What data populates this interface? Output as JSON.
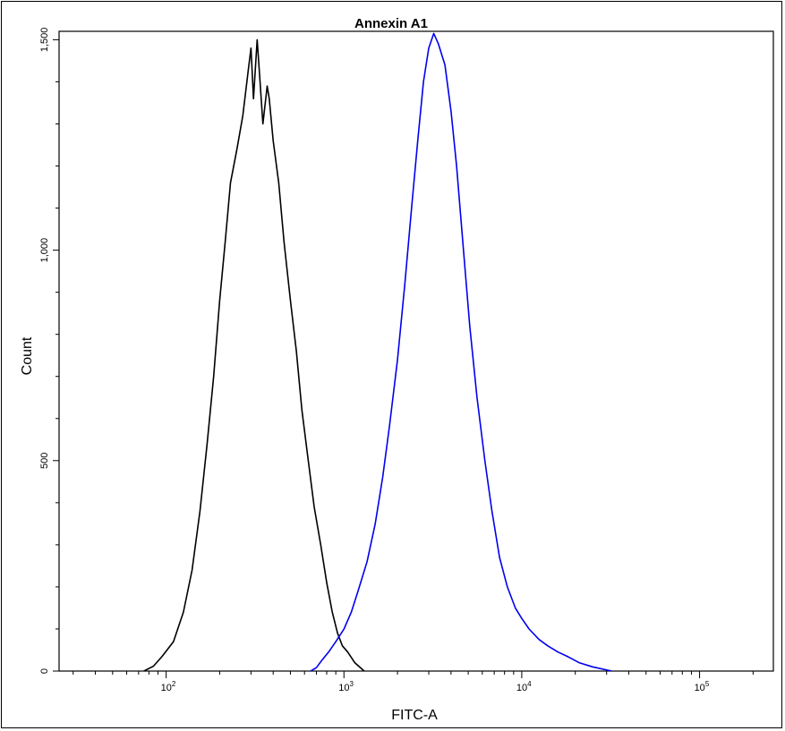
{
  "chart_data": {
    "type": "line",
    "title": "Annexin A1",
    "xlabel": "FITC-A",
    "ylabel": "Count",
    "x_scale": "log",
    "xlim": [
      25,
      260000
    ],
    "ylim": [
      0,
      1520
    ],
    "x_ticks": [
      {
        "value": 100,
        "base": "10",
        "exp": "2"
      },
      {
        "value": 1000,
        "base": "10",
        "exp": "3"
      },
      {
        "value": 10000,
        "base": "10",
        "exp": "4"
      },
      {
        "value": 100000,
        "base": "10",
        "exp": "5"
      }
    ],
    "y_ticks": [
      0,
      500,
      1000,
      1500
    ],
    "y_tick_labels": [
      "0",
      "500",
      "1,000",
      "1,500"
    ],
    "grid": false,
    "legend": "none",
    "series": [
      {
        "color": "#000000",
        "points": [
          [
            75,
            0
          ],
          [
            85,
            12
          ],
          [
            95,
            35
          ],
          [
            110,
            70
          ],
          [
            125,
            140
          ],
          [
            140,
            240
          ],
          [
            155,
            380
          ],
          [
            170,
            540
          ],
          [
            185,
            700
          ],
          [
            200,
            880
          ],
          [
            215,
            1020
          ],
          [
            230,
            1160
          ],
          [
            250,
            1240
          ],
          [
            270,
            1320
          ],
          [
            290,
            1430
          ],
          [
            300,
            1480
          ],
          [
            310,
            1360
          ],
          [
            325,
            1500
          ],
          [
            335,
            1420
          ],
          [
            350,
            1300
          ],
          [
            370,
            1390
          ],
          [
            380,
            1360
          ],
          [
            400,
            1260
          ],
          [
            430,
            1160
          ],
          [
            460,
            1020
          ],
          [
            500,
            880
          ],
          [
            540,
            760
          ],
          [
            580,
            620
          ],
          [
            630,
            500
          ],
          [
            680,
            390
          ],
          [
            740,
            300
          ],
          [
            800,
            210
          ],
          [
            860,
            140
          ],
          [
            920,
            90
          ],
          [
            980,
            60
          ],
          [
            1050,
            45
          ],
          [
            1150,
            20
          ],
          [
            1300,
            0
          ]
        ]
      },
      {
        "color": "#0000ee",
        "points": [
          [
            650,
            0
          ],
          [
            700,
            8
          ],
          [
            750,
            25
          ],
          [
            820,
            45
          ],
          [
            900,
            70
          ],
          [
            1000,
            100
          ],
          [
            1100,
            140
          ],
          [
            1200,
            190
          ],
          [
            1350,
            260
          ],
          [
            1500,
            350
          ],
          [
            1650,
            460
          ],
          [
            1800,
            580
          ],
          [
            2000,
            740
          ],
          [
            2200,
            920
          ],
          [
            2400,
            1100
          ],
          [
            2600,
            1260
          ],
          [
            2800,
            1400
          ],
          [
            3000,
            1480
          ],
          [
            3200,
            1515
          ],
          [
            3400,
            1490
          ],
          [
            3700,
            1440
          ],
          [
            4000,
            1330
          ],
          [
            4300,
            1200
          ],
          [
            4700,
            1000
          ],
          [
            5100,
            820
          ],
          [
            5600,
            650
          ],
          [
            6200,
            500
          ],
          [
            6800,
            380
          ],
          [
            7500,
            270
          ],
          [
            8300,
            200
          ],
          [
            9200,
            150
          ],
          [
            10000,
            125
          ],
          [
            11000,
            100
          ],
          [
            12500,
            75
          ],
          [
            14000,
            60
          ],
          [
            16000,
            45
          ],
          [
            18000,
            35
          ],
          [
            21000,
            20
          ],
          [
            25000,
            10
          ],
          [
            32000,
            0
          ]
        ]
      }
    ]
  }
}
